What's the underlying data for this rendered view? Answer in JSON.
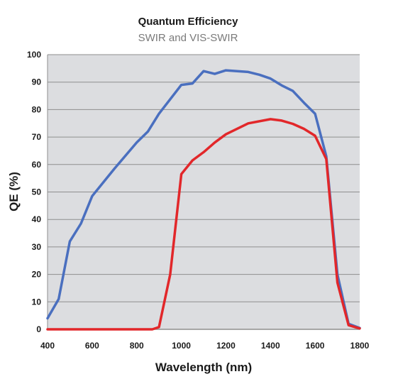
{
  "chart_data": {
    "type": "line",
    "title": "Quantum Efficiency",
    "subtitle": "SWIR and VIS-SWIR",
    "xlabel": "Wavelength (nm)",
    "ylabel": "QE (%)",
    "xlim": [
      400,
      1800
    ],
    "ylim": [
      0,
      100
    ],
    "x_ticks": [
      400,
      600,
      800,
      1000,
      1200,
      1400,
      1600,
      1800
    ],
    "y_ticks": [
      0,
      10,
      20,
      30,
      40,
      50,
      60,
      70,
      80,
      90,
      100
    ],
    "grid": true,
    "legend": "none",
    "plot_background": "#dcdde0",
    "grid_color": "#8e8e8e",
    "series": [
      {
        "color": "#4a6fbf",
        "points": [
          [
            400,
            4
          ],
          [
            450,
            11
          ],
          [
            500,
            32
          ],
          [
            550,
            38.5
          ],
          [
            600,
            48.5
          ],
          [
            700,
            58.5
          ],
          [
            800,
            68
          ],
          [
            850,
            72
          ],
          [
            900,
            78.5
          ],
          [
            1000,
            89
          ],
          [
            1050,
            89.5
          ],
          [
            1100,
            94
          ],
          [
            1150,
            93
          ],
          [
            1200,
            94.3
          ],
          [
            1300,
            93.7
          ],
          [
            1350,
            92.7
          ],
          [
            1400,
            91.3
          ],
          [
            1450,
            88.8
          ],
          [
            1500,
            86.8
          ],
          [
            1550,
            82.5
          ],
          [
            1600,
            78.5
          ],
          [
            1650,
            63
          ],
          [
            1700,
            20
          ],
          [
            1750,
            2
          ],
          [
            1800,
            0.5
          ]
        ]
      },
      {
        "color": "#e2272a",
        "points": [
          [
            400,
            0
          ],
          [
            500,
            0
          ],
          [
            600,
            0
          ],
          [
            700,
            0
          ],
          [
            800,
            0
          ],
          [
            870,
            0
          ],
          [
            900,
            0.8
          ],
          [
            950,
            20
          ],
          [
            1000,
            56.5
          ],
          [
            1050,
            61.5
          ],
          [
            1100,
            64.5
          ],
          [
            1150,
            68
          ],
          [
            1200,
            71
          ],
          [
            1300,
            75
          ],
          [
            1400,
            76.5
          ],
          [
            1450,
            76
          ],
          [
            1500,
            74.8
          ],
          [
            1550,
            73
          ],
          [
            1600,
            70.5
          ],
          [
            1650,
            62
          ],
          [
            1700,
            17
          ],
          [
            1750,
            1.5
          ],
          [
            1800,
            0.3
          ]
        ]
      }
    ]
  }
}
